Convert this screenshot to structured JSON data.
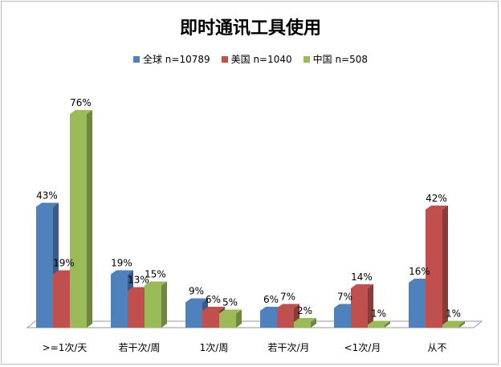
{
  "chart_data": {
    "type": "bar",
    "title": "即时通讯工具使用",
    "categories": [
      ">=1次/天",
      "若干次/周",
      "1次/周",
      "若干次/月",
      "<1次/月",
      "从不"
    ],
    "series": [
      {
        "name": "全球 n=10789",
        "color": "#4f81bd",
        "values": [
          43,
          19,
          9,
          6,
          7,
          16
        ],
        "labels": [
          "43%",
          "19%",
          "9%",
          "6%",
          "7%",
          "16%"
        ]
      },
      {
        "name": "美国 n=1040",
        "color": "#c0504d",
        "values": [
          19,
          13,
          6,
          7,
          14,
          42
        ],
        "labels": [
          "19%",
          "13%",
          "6%",
          "7%",
          "14%",
          "42%"
        ]
      },
      {
        "name": "中国 n=508",
        "color": "#9bbb59",
        "values": [
          76,
          15,
          5,
          2,
          1,
          1
        ],
        "labels": [
          "76%",
          "15%",
          "5%",
          "2%",
          "1%",
          "1%"
        ]
      }
    ],
    "ylim": [
      0,
      80
    ],
    "grid": false,
    "legend_position": "top"
  }
}
